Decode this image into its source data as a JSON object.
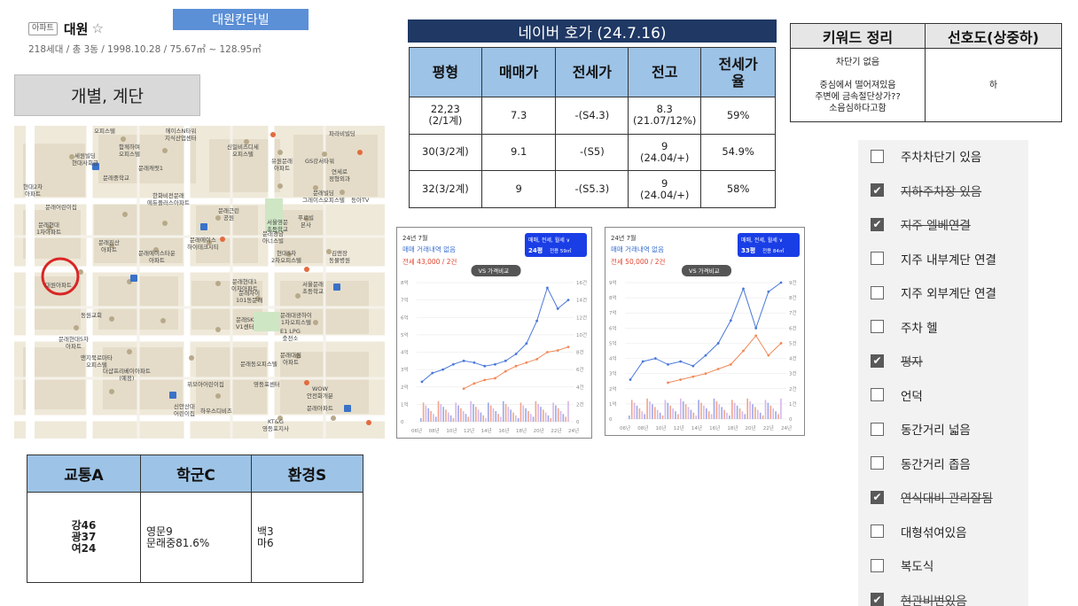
{
  "apt": {
    "tag": "아파트",
    "name": "대원",
    "star": "☆",
    "meta": "218세대 / 총 3동 / 1998.10.28 / 75.67㎡ ~ 128.95㎡"
  },
  "brand_banner": "대원칸타빌",
  "section_label": "개별, 계단",
  "map": {
    "labels": [
      {
        "t": "오피스텔"
      },
      {
        "t": "함께하며\n오피스텔"
      },
      {
        "t": "에이스N타워\n지식산업센터"
      },
      {
        "t": "신일비즈디세\n오피스텔"
      },
      {
        "t": "파라비빌딩"
      },
      {
        "t": "세원빌딩\n현대사회금"
      },
      {
        "t": "문래캐럿1"
      },
      {
        "t": "유원문래\n아파트"
      },
      {
        "t": "GS강서타워"
      },
      {
        "t": "연세로\n정형외과"
      },
      {
        "t": "현대2차\n아파트"
      },
      {
        "t": "문래중학교"
      },
      {
        "t": "한화비전문래\n에듀플러스아파트"
      },
      {
        "t": "문래빌딩\n그레이스오피스텔"
      },
      {
        "t": "동아TV"
      },
      {
        "t": "문래어린이집"
      },
      {
        "t": "문래근린\n공원"
      },
      {
        "t": "서울영문\n초등학교"
      },
      {
        "t": "푸르빌\n본사"
      },
      {
        "t": "문래현대\n1차아파트"
      },
      {
        "t": "문래진산\n아파트"
      },
      {
        "t": "문래에이스타운\n아파트"
      },
      {
        "t": "문래에이스\n하이테크시티"
      },
      {
        "t": "문래경남\n아너스빌"
      },
      {
        "t": "현대5차\n2차오피스텔"
      },
      {
        "t": "김앤장\n동물병원"
      },
      {
        "t": "문래현대1\n이차아파트"
      },
      {
        "t": "대원아파트"
      },
      {
        "t": "서울문래\n초등학교"
      },
      {
        "t": "문래자이\n101동문래"
      },
      {
        "t": "동원교회"
      },
      {
        "t": "문래SK\nV1센터"
      },
      {
        "t": "문래대광하이\n1차오피스텔"
      },
      {
        "t": "문래현대5차\n아파트"
      },
      {
        "t": "E1 LPG\n충전소"
      },
      {
        "t": "맨지북로마타\n오피스텔"
      },
      {
        "t": "더샵프리베이아파트\n(예정)"
      },
      {
        "t": "문래동오피스텔"
      },
      {
        "t": "문래대림\n아파트"
      },
      {
        "t": "신안산대\n어린이집"
      },
      {
        "t": "위모아어린이집"
      },
      {
        "t": "하우스디비즈"
      },
      {
        "t": "KT&G\n영등포지사"
      },
      {
        "t": "문래아파트"
      },
      {
        "t": "영등포센터"
      },
      {
        "t": "WOW\n안전화개분"
      }
    ]
  },
  "scores": {
    "headers": [
      "교통A",
      "학군C",
      "환경S"
    ],
    "traffic": [
      "강46",
      "광37",
      "여24"
    ],
    "school": [
      "영문9",
      "문래중81.6%"
    ],
    "env": [
      "백3",
      "마6"
    ]
  },
  "naver": {
    "title": "네이버 호가 (24.7.16)",
    "headers": [
      "평형",
      "매매가",
      "전세가",
      "전고",
      "전세가\n율"
    ],
    "rows": [
      [
        "22,23\n(2/1계)",
        "7.3",
        "-(S4.3)",
        "8.3\n(21.07/12%)",
        "59%"
      ],
      [
        "30(3/2계)",
        "9.1",
        "-(S5)",
        "9\n(24.04/+)",
        "54.9%"
      ],
      [
        "32(3/2계)",
        "9",
        "-(S5.3)",
        "9\n(24.04/+)",
        "58%"
      ]
    ]
  },
  "keywords": {
    "headers": [
      "키워드 정리",
      "선호도(상중하)"
    ],
    "text": "차단기 없음\n\n중심에서 떨어져있음\n주변에 금속절단상가??\n소음심하다고함",
    "rating": "하"
  },
  "chart_data": [
    {
      "type": "line",
      "title": "24년 7월",
      "notice": "매매 거래내역 없음",
      "jeonse": "전세 43,000 / 2건",
      "compare_button": "VS 가격비교",
      "filter": "매매, 전세, 월세 ∨",
      "size": "24평",
      "size_sub": "전용 59㎡",
      "x_ticks": [
        "06년",
        "08년",
        "10년",
        "12년",
        "14년",
        "16년",
        "18년",
        "20년",
        "22년",
        "24년"
      ],
      "y_ticks": [
        "0",
        "1억",
        "2억",
        "3억",
        "4억",
        "5억",
        "6억",
        "7억",
        "8억"
      ],
      "y2_ticks": [
        "0",
        "2건",
        "4건",
        "6건",
        "8건",
        "10건",
        "12건",
        "14건",
        "16건"
      ],
      "series": [
        {
          "values": [
            2.3,
            2.8,
            3.0,
            3.3,
            3.5,
            3.4,
            3.2,
            3.3,
            3.5,
            3.9,
            4.5,
            5.8,
            7.7,
            6.5,
            7.0
          ]
        },
        {
          "values": [
            null,
            null,
            null,
            null,
            1.9,
            2.2,
            2.4,
            2.5,
            2.9,
            3.2,
            3.4,
            3.6,
            4.0,
            4.1,
            4.3
          ]
        }
      ]
    },
    {
      "type": "line",
      "title": "24년 7월",
      "notice": "매매 거래내역 없음",
      "jeonse": "전세 50,000 / 2건",
      "compare_button": "VS 가격비교",
      "filter": "매매, 전세, 월세 ∨",
      "size": "33평",
      "size_sub": "전용 84㎡",
      "x_ticks": [
        "06년",
        "08년",
        "10년",
        "12년",
        "14년",
        "16년",
        "18년",
        "20년",
        "22년",
        "24년"
      ],
      "y_ticks": [
        "0",
        "1억",
        "2억",
        "3억",
        "4억",
        "5억",
        "6억",
        "7억",
        "8억",
        "9억"
      ],
      "y2_ticks": [
        "0",
        "1건",
        "2건",
        "3건",
        "4건",
        "5건",
        "6건",
        "7건",
        "8건",
        "9건"
      ],
      "series": [
        {
          "values": [
            2.6,
            3.8,
            4.0,
            3.6,
            3.8,
            3.5,
            4.2,
            5.0,
            6.5,
            8.6,
            6.0,
            8.4,
            9.0
          ]
        },
        {
          "values": [
            null,
            null,
            null,
            2.4,
            2.6,
            2.8,
            3.0,
            3.3,
            3.6,
            4.5,
            5.5,
            4.2,
            5.0
          ]
        }
      ]
    }
  ],
  "checklist": [
    {
      "label": "주차차단기 있음",
      "checked": false,
      "strike": false
    },
    {
      "label": "지하주차장 있음",
      "checked": true,
      "strike": true
    },
    {
      "label": "지주 엘베연결",
      "checked": true,
      "strike": true
    },
    {
      "label": "지주 내부계단 연결",
      "checked": false,
      "strike": false
    },
    {
      "label": "지주 외부계단 연결",
      "checked": false,
      "strike": false
    },
    {
      "label": "주차 헬",
      "checked": false,
      "strike": false
    },
    {
      "label": "평자",
      "checked": true,
      "strike": true
    },
    {
      "label": "언덕",
      "checked": false,
      "strike": false
    },
    {
      "label": "동간거리 넓음",
      "checked": false,
      "strike": false
    },
    {
      "label": "동간거리 좁음",
      "checked": false,
      "strike": false
    },
    {
      "label": "연식대비 관리잘됨",
      "checked": true,
      "strike": true
    },
    {
      "label": "대형섞여있음",
      "checked": false,
      "strike": false
    },
    {
      "label": "복도식",
      "checked": false,
      "strike": false
    },
    {
      "label": "현관비번있음",
      "checked": true,
      "strike": true
    }
  ],
  "colors": {
    "header_blue": "#9dc3e6",
    "navy": "#1f3864",
    "banner_blue": "#5b8fd6",
    "sale_line": "#4a78d9",
    "jeonse_line": "#f08b5a",
    "map_marker": "#d92626"
  }
}
